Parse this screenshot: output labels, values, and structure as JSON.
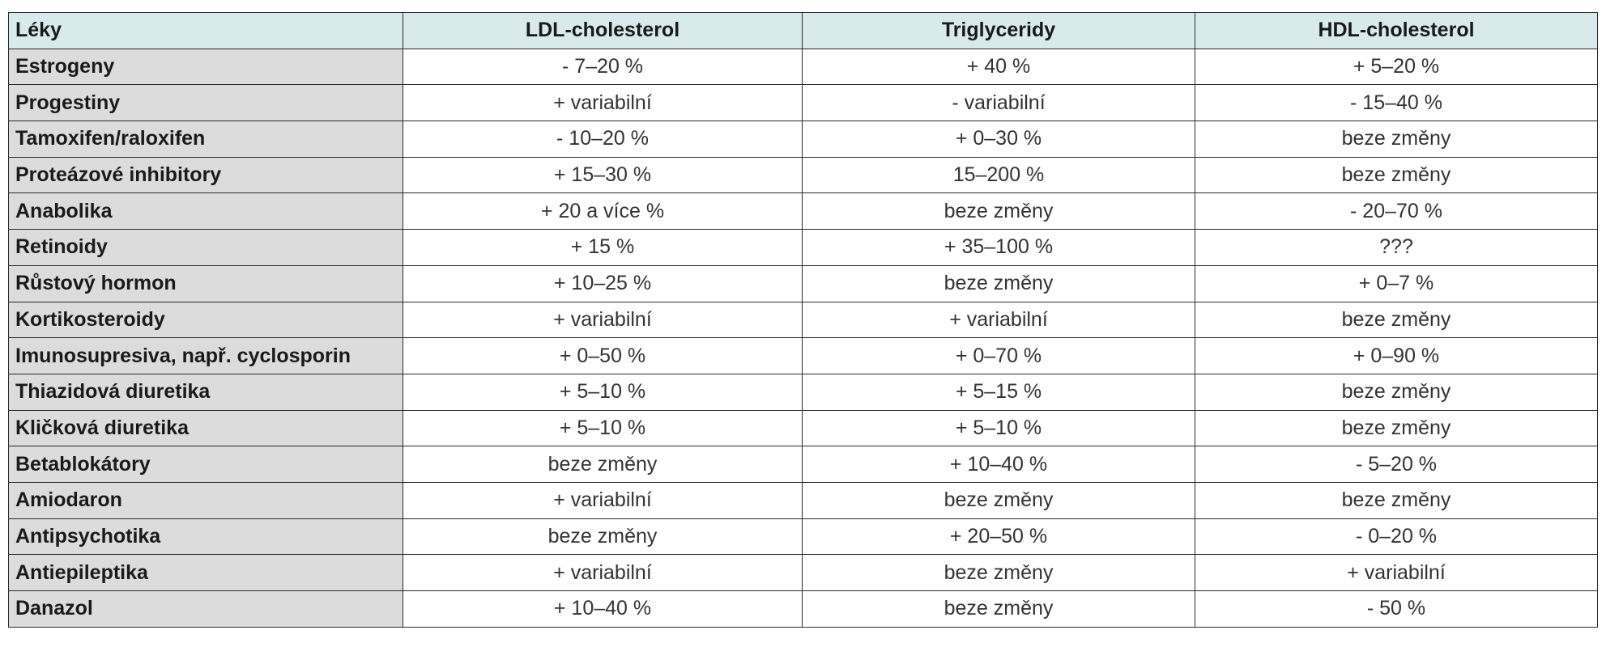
{
  "table": {
    "headers": [
      "Léky",
      "LDL-cholesterol",
      "Triglyceridy",
      "HDL-cholesterol"
    ],
    "rows": [
      [
        "Estrogeny",
        "- 7–20 %",
        "+ 40 %",
        "+ 5–20 %"
      ],
      [
        "Progestiny",
        "+ variabilní",
        "- variabilní",
        "- 15–40 %"
      ],
      [
        "Tamoxifen/raloxifen",
        "- 10–20 %",
        "+ 0–30 %",
        "beze změny"
      ],
      [
        "Proteázové inhibitory",
        "+ 15–30 %",
        "15–200 %",
        "beze změny"
      ],
      [
        "Anabolika",
        "+ 20 a více %",
        "beze změny",
        "- 20–70 %"
      ],
      [
        "Retinoidy",
        "+ 15 %",
        "+ 35–100 %",
        "???"
      ],
      [
        "Růstový hormon",
        "+ 10–25 %",
        "beze změny",
        "+ 0–7 %"
      ],
      [
        "Kortikosteroidy",
        "+ variabilní",
        "+ variabilní",
        "beze změny"
      ],
      [
        "Imunosupresiva, např. cyclosporin",
        "+ 0–50 %",
        "+ 0–70 %",
        "+ 0–90 %"
      ],
      [
        "Thiazidová diuretika",
        "+ 5–10 %",
        "+ 5–15 %",
        "beze změny"
      ],
      [
        "Kličková diuretika",
        "+ 5–10 %",
        "+ 5–10 %",
        "beze změny"
      ],
      [
        "Betablokátory",
        "beze změny",
        "+ 10–40 %",
        "- 5–20 %"
      ],
      [
        "Amiodaron",
        "+ variabilní",
        "beze změny",
        "beze změny"
      ],
      [
        "Antipsychotika",
        "beze změny",
        "+ 20–50 %",
        "- 0–20 %"
      ],
      [
        "Antiepileptika",
        "+ variabilní",
        "beze změny",
        "+ variabilní"
      ],
      [
        "Danazol",
        "+ 10–40 %",
        "beze změny",
        "- 50 %"
      ]
    ]
  },
  "colors": {
    "header_bg": "#d8eaec",
    "drug_col_bg": "#dcdcdc",
    "border": "#2a2a2a"
  }
}
